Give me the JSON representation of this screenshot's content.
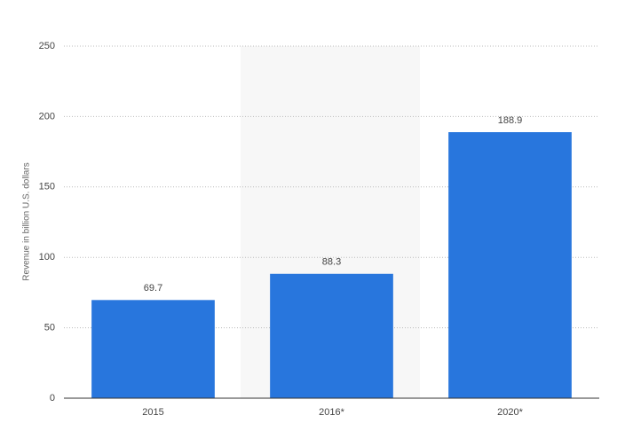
{
  "chart_data": {
    "type": "bar",
    "y_axis_label": "Revenue in billion U.S. dollars",
    "categories": [
      "2015",
      "2016*",
      "2020*"
    ],
    "values": [
      69.7,
      88.3,
      188.9
    ],
    "color": "#2876dd",
    "ylim": [
      0,
      250
    ],
    "yticks": [
      0,
      50,
      100,
      150,
      200,
      250
    ],
    "grid": true
  }
}
